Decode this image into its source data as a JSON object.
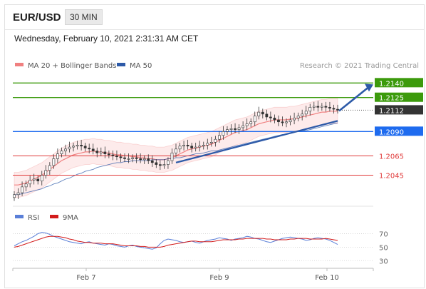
{
  "header": {
    "pair": "EUR/USD",
    "timeframe": "30 MIN"
  },
  "timestamp": "Wednesday, February 10, 2021 2:31:31 AM CET",
  "legend": {
    "ma20": "MA 20 + Bollinger Bands",
    "ma50": "MA 50",
    "credit": "Research © 2021 Trading Central",
    "rsi": "RSI",
    "ma9": "9MA"
  },
  "colors": {
    "ma20": "#f08080",
    "ma50": "#2d5aa8",
    "resistance": "#3c9a0c",
    "support": "#e03a3a",
    "pivot": "#1e6bef",
    "price": "#333333",
    "rsi": "#5a7fd8",
    "rsi_ma": "#d21b1b",
    "arrow": "#2d5aa8"
  },
  "chart_data": [
    {
      "type": "candlestick",
      "x_ticks": [
        "Feb 7",
        "Feb 9",
        "Feb 10"
      ],
      "ylim": [
        1.2016,
        1.2152
      ],
      "price": [
        1.2025,
        1.2027,
        1.2033,
        1.2036,
        1.204,
        1.2041,
        1.2039,
        1.2045,
        1.205,
        1.2055,
        1.2062,
        1.2067,
        1.207,
        1.2072,
        1.2074,
        1.2075,
        1.2076,
        1.2075,
        1.2073,
        1.2072,
        1.207,
        1.2068,
        1.2069,
        1.2067,
        1.2066,
        1.2065,
        1.2064,
        1.2063,
        1.2062,
        1.2062,
        1.2063,
        1.2062,
        1.2061,
        1.2062,
        1.206,
        1.2058,
        1.2056,
        1.2055,
        1.2056,
        1.206,
        1.2068,
        1.2072,
        1.2075,
        1.2076,
        1.2075,
        1.2073,
        1.2074,
        1.2075,
        1.2076,
        1.2078,
        1.2079,
        1.2082,
        1.2086,
        1.209,
        1.2092,
        1.2093,
        1.2092,
        1.2094,
        1.2096,
        1.2098,
        1.21,
        1.2106,
        1.211,
        1.2108,
        1.2105,
        1.2104,
        1.2102,
        1.21,
        1.2099,
        1.21,
        1.2102,
        1.2104,
        1.2106,
        1.2108,
        1.2111,
        1.2115,
        1.2116,
        1.2115,
        1.2116,
        1.2115,
        1.2114,
        1.2113,
        1.2112
      ],
      "ma20": [
        1.2035,
        1.2035,
        1.2036,
        1.2037,
        1.2039,
        1.2041,
        1.2043,
        1.2045,
        1.2048,
        1.2051,
        1.2054,
        1.2057,
        1.206,
        1.2062,
        1.2064,
        1.2066,
        1.2067,
        1.2068,
        1.2069,
        1.2069,
        1.207,
        1.2069,
        1.2069,
        1.2068,
        1.2068,
        1.2067,
        1.2066,
        1.2066,
        1.2065,
        1.2065,
        1.2064,
        1.2064,
        1.2063,
        1.2063,
        1.2062,
        1.2062,
        1.2061,
        1.2061,
        1.2061,
        1.2062,
        1.2063,
        1.2065,
        1.2067,
        1.2069,
        1.2071,
        1.2072,
        1.2073,
        1.2074,
        1.2075,
        1.2076,
        1.2077,
        1.2079,
        1.2081,
        1.2083,
        1.2085,
        1.2087,
        1.2089,
        1.209,
        1.2091,
        1.2092,
        1.2094,
        1.2096,
        1.2098,
        1.2099,
        1.21,
        1.2101,
        1.2102,
        1.2102,
        1.2102,
        1.2102,
        1.2103,
        1.2103,
        1.2104,
        1.2105,
        1.2106,
        1.2107,
        1.2108,
        1.2109,
        1.211,
        1.211,
        1.2111,
        1.2111,
        1.2111
      ],
      "ma50": [
        1.2025,
        1.2025,
        1.2026,
        1.2027,
        1.2028,
        1.2029,
        1.203,
        1.2031,
        1.2033,
        1.2034,
        1.2036,
        1.2037,
        1.2039,
        1.2041,
        1.2042,
        1.2044,
        1.2046,
        1.2047,
        1.2049,
        1.205,
        1.2051,
        1.2053,
        1.2054,
        1.2055,
        1.2056,
        1.2057,
        1.2058,
        1.2058,
        1.2059,
        1.2059,
        1.206,
        1.206,
        1.206,
        1.206,
        1.206,
        1.2061,
        1.2061,
        1.2061,
        1.2061,
        1.2062,
        1.2062,
        1.2063,
        1.2063,
        1.2064,
        1.2065,
        1.2066,
        1.2067,
        1.2067,
        1.2068,
        1.2069,
        1.207,
        1.207,
        1.2071,
        1.2072,
        1.2073,
        1.2074,
        1.2075,
        1.2076,
        1.2077,
        1.2078,
        1.2079,
        1.208,
        1.2081,
        1.2082,
        1.2083,
        1.2084,
        1.2085,
        1.2086,
        1.2087,
        1.2087,
        1.2088,
        1.2089,
        1.209,
        1.2091,
        1.2091,
        1.2092,
        1.2093,
        1.2094,
        1.2095,
        1.2096,
        1.2097,
        1.2098,
        1.2099
      ],
      "levels": [
        {
          "value": 1.214,
          "label": "1.2140",
          "kind": "resistance"
        },
        {
          "value": 1.2125,
          "label": "1.2125",
          "kind": "resistance"
        },
        {
          "value": 1.2112,
          "label": "1.2112",
          "kind": "price"
        },
        {
          "value": 1.209,
          "label": "1.2090",
          "kind": "pivot"
        },
        {
          "value": 1.2065,
          "label": "1.2065",
          "kind": "support"
        },
        {
          "value": 1.2045,
          "label": "1.2045",
          "kind": "support"
        }
      ],
      "trendline": {
        "from_index": 41,
        "from_value": 1.2058,
        "to_index": 82,
        "to_value": 1.2101
      },
      "forecast_arrow": {
        "to_value": 1.214
      }
    },
    {
      "type": "line",
      "title": "RSI",
      "ylim": [
        25,
        80
      ],
      "y_ticks": [
        70,
        50,
        30
      ],
      "series": [
        {
          "name": "RSI",
          "values": [
            52,
            55,
            58,
            60,
            63,
            66,
            70,
            72,
            71,
            69,
            66,
            64,
            62,
            60,
            58,
            57,
            56,
            55,
            57,
            58,
            56,
            55,
            54,
            53,
            55,
            54,
            52,
            51,
            50,
            52,
            53,
            51,
            50,
            49,
            48,
            47,
            49,
            55,
            60,
            62,
            61,
            60,
            58,
            57,
            58,
            59,
            57,
            56,
            58,
            60,
            61,
            62,
            64,
            63,
            62,
            60,
            62,
            63,
            64,
            66,
            65,
            63,
            62,
            60,
            58,
            57,
            59,
            61,
            63,
            64,
            65,
            64,
            63,
            62,
            60,
            61,
            63,
            64,
            63,
            62,
            60,
            57,
            54
          ]
        },
        {
          "name": "9MA",
          "values": [
            50,
            51,
            53,
            55,
            57,
            59,
            61,
            63,
            65,
            66,
            66,
            66,
            65,
            64,
            62,
            61,
            59,
            58,
            57,
            57,
            56,
            56,
            56,
            55,
            55,
            55,
            54,
            53,
            52,
            52,
            52,
            52,
            51,
            51,
            50,
            50,
            50,
            50,
            51,
            53,
            54,
            55,
            56,
            57,
            58,
            59,
            59,
            58,
            58,
            58,
            58,
            59,
            60,
            61,
            61,
            61,
            61,
            62,
            62,
            63,
            63,
            63,
            63,
            63,
            62,
            62,
            61,
            61,
            61,
            61,
            62,
            62,
            63,
            63,
            63,
            62,
            62,
            62,
            62,
            63,
            62,
            61,
            60
          ]
        }
      ]
    }
  ]
}
